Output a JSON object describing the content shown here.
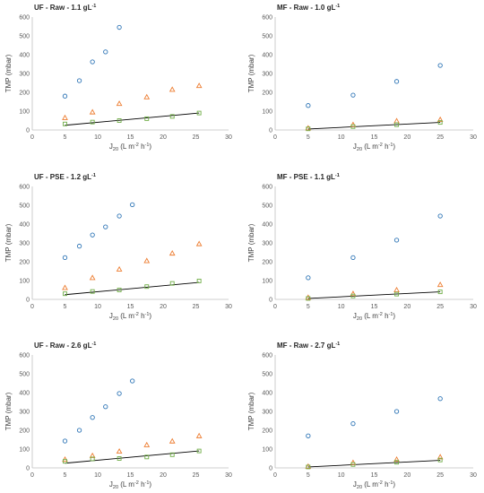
{
  "chart_data": [
    {
      "type": "scatter",
      "title": "UF - Raw - 1.1 gL",
      "title_sup": "-1",
      "xlabel_main": "J",
      "xlabel_sub": "20",
      "xlabel_unit_a": " (L m",
      "xlabel_sup_a": "-2",
      "xlabel_unit_b": " h",
      "xlabel_sup_b": "-1",
      "xlabel_close": ")",
      "ylabel": "TMP (mbar)",
      "xlim": [
        0,
        30
      ],
      "ylim": [
        0,
        600
      ],
      "xticks": [
        "0",
        "5",
        "10",
        "15",
        "20",
        "25",
        "30"
      ],
      "yticks": [
        "0",
        "100",
        "200",
        "300",
        "400",
        "500",
        "600"
      ],
      "grid": false,
      "series": [
        {
          "marker": "circle",
          "color": "#2e75b6",
          "x": [
            5,
            7.2,
            9.2,
            11.2,
            13.3
          ],
          "y": [
            180,
            262,
            362,
            415,
            545
          ]
        },
        {
          "marker": "triangle",
          "color": "#ed7d31",
          "x": [
            5,
            9.2,
            13.3,
            17.5,
            21.4,
            25.5
          ],
          "y": [
            65,
            95,
            140,
            175,
            215,
            235
          ]
        },
        {
          "marker": "square",
          "color": "#70ad47",
          "x": [
            5,
            9.2,
            13.3,
            17.5,
            21.4,
            25.5
          ],
          "y": [
            32,
            42,
            50,
            60,
            72,
            90
          ]
        }
      ],
      "trendline": {
        "x": [
          5,
          25.5
        ],
        "y": [
          25,
          90
        ]
      }
    },
    {
      "type": "scatter",
      "title": "MF - Raw - 1.0 gL",
      "title_sup": "-1",
      "xlabel_main": "J",
      "xlabel_sub": "20",
      "xlabel_unit_a": " (L m",
      "xlabel_sup_a": "-2",
      "xlabel_unit_b": " h",
      "xlabel_sup_b": "-1",
      "xlabel_close": ")",
      "ylabel": "TMP (mbar)",
      "xlim": [
        0,
        30
      ],
      "ylim": [
        0,
        600
      ],
      "xticks": [
        "0",
        "5",
        "10",
        "15",
        "20",
        "25",
        "30"
      ],
      "yticks": [
        "0",
        "100",
        "200",
        "300",
        "400",
        "500",
        "600"
      ],
      "grid": false,
      "series": [
        {
          "marker": "circle",
          "color": "#2e75b6",
          "x": [
            5,
            11.8,
            18.4,
            25
          ],
          "y": [
            130,
            185,
            258,
            343
          ]
        },
        {
          "marker": "triangle",
          "color": "#ed7d31",
          "x": [
            5,
            11.8,
            18.4,
            25
          ],
          "y": [
            10,
            28,
            48,
            55
          ]
        },
        {
          "marker": "square",
          "color": "#70ad47",
          "x": [
            5,
            11.8,
            18.4,
            25
          ],
          "y": [
            6,
            18,
            28,
            40
          ]
        }
      ],
      "trendline": {
        "x": [
          5,
          25
        ],
        "y": [
          5,
          40
        ]
      }
    },
    {
      "type": "scatter",
      "title": "UF - PSE - 1.2 gL",
      "title_sup": "-1",
      "xlabel_main": "J",
      "xlabel_sub": "20",
      "xlabel_unit_a": " (L m",
      "xlabel_sup_a": "-2",
      "xlabel_unit_b": " h",
      "xlabel_sup_b": "-1",
      "xlabel_close": ")",
      "ylabel": "TMP (mbar)",
      "xlim": [
        0,
        30
      ],
      "ylim": [
        0,
        600
      ],
      "xticks": [
        "0",
        "5",
        "10",
        "15",
        "20",
        "25",
        "30"
      ],
      "yticks": [
        "0",
        "100",
        "200",
        "300",
        "400",
        "500",
        "600"
      ],
      "grid": false,
      "series": [
        {
          "marker": "circle",
          "color": "#2e75b6",
          "x": [
            5,
            7.2,
            9.2,
            11.2,
            13.3,
            15.3
          ],
          "y": [
            222,
            283,
            342,
            385,
            443,
            503
          ]
        },
        {
          "marker": "triangle",
          "color": "#ed7d31",
          "x": [
            5,
            9.2,
            13.3,
            17.5,
            21.4,
            25.5
          ],
          "y": [
            62,
            115,
            160,
            205,
            245,
            295
          ]
        },
        {
          "marker": "square",
          "color": "#70ad47",
          "x": [
            5,
            9.2,
            13.3,
            17.5,
            21.4,
            25.5
          ],
          "y": [
            30,
            42,
            50,
            68,
            85,
            98
          ]
        }
      ],
      "trendline": {
        "x": [
          5,
          25.5
        ],
        "y": [
          25,
          90
        ]
      }
    },
    {
      "type": "scatter",
      "title": "MF - PSE - 1.1 gL",
      "title_sup": "-1",
      "xlabel_main": "J",
      "xlabel_sub": "20",
      "xlabel_unit_a": " (L m",
      "xlabel_sup_a": "-2",
      "xlabel_unit_b": " h",
      "xlabel_sup_b": "-1",
      "xlabel_close": ")",
      "ylabel": "TMP (mbar)",
      "xlim": [
        0,
        30
      ],
      "ylim": [
        0,
        600
      ],
      "xticks": [
        "0",
        "5",
        "10",
        "15",
        "20",
        "25",
        "30"
      ],
      "yticks": [
        "0",
        "100",
        "200",
        "300",
        "400",
        "500",
        "600"
      ],
      "grid": false,
      "series": [
        {
          "marker": "circle",
          "color": "#2e75b6",
          "x": [
            5,
            11.8,
            18.4,
            25
          ],
          "y": [
            115,
            222,
            315,
            443
          ]
        },
        {
          "marker": "triangle",
          "color": "#ed7d31",
          "x": [
            5,
            11.8,
            18.4,
            25
          ],
          "y": [
            10,
            30,
            50,
            78
          ]
        },
        {
          "marker": "square",
          "color": "#70ad47",
          "x": [
            5,
            11.8,
            18.4,
            25
          ],
          "y": [
            5,
            18,
            28,
            40
          ]
        }
      ],
      "trendline": {
        "x": [
          5,
          25
        ],
        "y": [
          5,
          40
        ]
      }
    },
    {
      "type": "scatter",
      "title": "UF - Raw - 2.6 gL",
      "title_sup": "-1",
      "xlabel_main": "J",
      "xlabel_sub": "20",
      "xlabel_unit_a": " (L m",
      "xlabel_sup_a": "-2",
      "xlabel_unit_b": " h",
      "xlabel_sup_b": "-1",
      "xlabel_close": ")",
      "ylabel": "TMP (mbar)",
      "xlim": [
        0,
        30
      ],
      "ylim": [
        0,
        600
      ],
      "xticks": [
        "0",
        "5",
        "10",
        "15",
        "20",
        "25",
        "30"
      ],
      "yticks": [
        "0",
        "100",
        "200",
        "300",
        "400",
        "500",
        "600"
      ],
      "grid": false,
      "series": [
        {
          "marker": "circle",
          "color": "#2e75b6",
          "x": [
            5,
            7.2,
            9.2,
            11.2,
            13.3,
            15.3
          ],
          "y": [
            143,
            200,
            268,
            325,
            395,
            462
          ]
        },
        {
          "marker": "triangle",
          "color": "#ed7d31",
          "x": [
            5,
            9.2,
            13.3,
            17.5,
            21.4,
            25.5
          ],
          "y": [
            45,
            65,
            88,
            122,
            142,
            170
          ]
        },
        {
          "marker": "square",
          "color": "#70ad47",
          "x": [
            5,
            9.2,
            13.3,
            17.5,
            21.4,
            25.5
          ],
          "y": [
            35,
            48,
            50,
            58,
            70,
            90
          ]
        }
      ],
      "trendline": {
        "x": [
          5,
          25.5
        ],
        "y": [
          25,
          90
        ]
      }
    },
    {
      "type": "scatter",
      "title": "MF - Raw - 2.7 gL",
      "title_sup": "-1",
      "xlabel_main": "J",
      "xlabel_sub": "20",
      "xlabel_unit_a": " (L m",
      "xlabel_sup_a": "-2",
      "xlabel_unit_b": " h",
      "xlabel_sup_b": "-1",
      "xlabel_close": ")",
      "ylabel": "TMP (mbar)",
      "xlim": [
        0,
        30
      ],
      "ylim": [
        0,
        600
      ],
      "xticks": [
        "0",
        "5",
        "10",
        "15",
        "20",
        "25",
        "30"
      ],
      "yticks": [
        "0",
        "100",
        "200",
        "300",
        "400",
        "500",
        "600"
      ],
      "grid": false,
      "series": [
        {
          "marker": "circle",
          "color": "#2e75b6",
          "x": [
            5,
            11.8,
            18.4,
            25
          ],
          "y": [
            170,
            235,
            300,
            368
          ]
        },
        {
          "marker": "triangle",
          "color": "#ed7d31",
          "x": [
            5,
            11.8,
            18.4,
            25
          ],
          "y": [
            8,
            28,
            45,
            58
          ]
        },
        {
          "marker": "square",
          "color": "#70ad47",
          "x": [
            5,
            11.8,
            18.4,
            25
          ],
          "y": [
            5,
            18,
            30,
            42
          ]
        }
      ],
      "trendline": {
        "x": [
          5,
          25
        ],
        "y": [
          5,
          40
        ]
      }
    }
  ]
}
